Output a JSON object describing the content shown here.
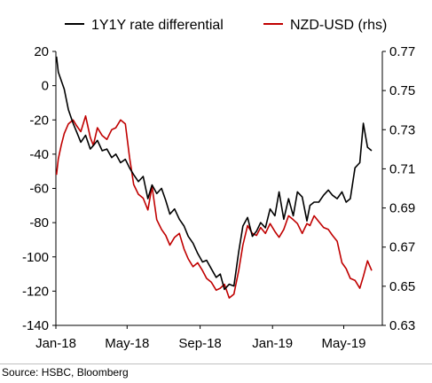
{
  "chart_data": {
    "type": "line",
    "title": "",
    "legend": {
      "placement": "top"
    },
    "x_ticks": [
      "Jan-18",
      "May-18",
      "Sep-18",
      "Jan-19",
      "May-19"
    ],
    "y_left": {
      "min": -140,
      "max": 20,
      "ticks": [
        20,
        0,
        -20,
        -40,
        -60,
        -80,
        -100,
        -120,
        -140
      ]
    },
    "y_right": {
      "min": 0.63,
      "max": 0.77,
      "ticks": [
        "0.77",
        "0.75",
        "0.73",
        "0.71",
        "0.69",
        "0.67",
        "0.65",
        "0.63"
      ]
    },
    "series": [
      {
        "name": "1Y1Y rate differential",
        "axis": "left",
        "color": "#000000",
        "x": [
          "2018-01-02",
          "2018-01-05",
          "2018-01-10",
          "2018-01-15",
          "2018-01-22",
          "2018-01-30",
          "2018-02-05",
          "2018-02-12",
          "2018-02-20",
          "2018-02-28",
          "2018-03-05",
          "2018-03-12",
          "2018-03-20",
          "2018-03-28",
          "2018-04-05",
          "2018-04-12",
          "2018-04-20",
          "2018-04-28",
          "2018-05-05",
          "2018-05-12",
          "2018-05-20",
          "2018-05-28",
          "2018-06-05",
          "2018-06-12",
          "2018-06-20",
          "2018-06-28",
          "2018-07-05",
          "2018-07-12",
          "2018-07-20",
          "2018-07-28",
          "2018-08-05",
          "2018-08-12",
          "2018-08-20",
          "2018-08-28",
          "2018-09-05",
          "2018-09-12",
          "2018-09-20",
          "2018-09-28",
          "2018-10-05",
          "2018-10-12",
          "2018-10-20",
          "2018-10-28",
          "2018-11-05",
          "2018-11-12",
          "2018-11-20",
          "2018-11-28",
          "2018-12-05",
          "2018-12-12",
          "2018-12-20",
          "2018-12-28",
          "2019-01-05",
          "2019-01-12",
          "2019-01-20",
          "2019-01-28",
          "2019-02-05",
          "2019-02-12",
          "2019-02-20",
          "2019-02-28",
          "2019-03-05",
          "2019-03-12",
          "2019-03-20",
          "2019-03-28",
          "2019-04-05",
          "2019-04-12",
          "2019-04-20",
          "2019-04-28",
          "2019-05-05",
          "2019-05-12",
          "2019-05-20",
          "2019-05-28",
          "2019-06-03",
          "2019-06-10",
          "2019-06-17"
        ],
        "values": [
          17,
          8,
          3,
          -2,
          -14,
          -22,
          -27,
          -33,
          -29,
          -37,
          -35,
          -32,
          -38,
          -37,
          -42,
          -40,
          -45,
          -43,
          -48,
          -52,
          -56,
          -53,
          -66,
          -58,
          -63,
          -60,
          -67,
          -75,
          -72,
          -78,
          -82,
          -88,
          -92,
          -98,
          -103,
          -102,
          -107,
          -112,
          -110,
          -119,
          -116,
          -117,
          -97,
          -82,
          -77,
          -88,
          -85,
          -80,
          -83,
          -72,
          -76,
          -62,
          -78,
          -66,
          -76,
          -62,
          -65,
          -79,
          -70,
          -68,
          -68,
          -64,
          -61,
          -64,
          -66,
          -62,
          -68,
          -66,
          -48,
          -45,
          -22,
          -36,
          -38
        ]
      },
      {
        "name": "NZD-USD (rhs)",
        "axis": "right",
        "color": "#c00000",
        "x": [
          "2018-01-02",
          "2018-01-05",
          "2018-01-10",
          "2018-01-15",
          "2018-01-22",
          "2018-01-30",
          "2018-02-05",
          "2018-02-12",
          "2018-02-20",
          "2018-02-28",
          "2018-03-05",
          "2018-03-12",
          "2018-03-20",
          "2018-03-28",
          "2018-04-05",
          "2018-04-12",
          "2018-04-20",
          "2018-04-28",
          "2018-05-05",
          "2018-05-12",
          "2018-05-20",
          "2018-05-28",
          "2018-06-05",
          "2018-06-12",
          "2018-06-20",
          "2018-06-28",
          "2018-07-05",
          "2018-07-12",
          "2018-07-20",
          "2018-07-28",
          "2018-08-05",
          "2018-08-12",
          "2018-08-20",
          "2018-08-28",
          "2018-09-05",
          "2018-09-12",
          "2018-09-20",
          "2018-09-28",
          "2018-10-05",
          "2018-10-12",
          "2018-10-20",
          "2018-10-28",
          "2018-11-05",
          "2018-11-12",
          "2018-11-20",
          "2018-11-28",
          "2018-12-05",
          "2018-12-12",
          "2018-12-20",
          "2018-12-28",
          "2019-01-05",
          "2019-01-12",
          "2019-01-20",
          "2019-01-28",
          "2019-02-05",
          "2019-02-12",
          "2019-02-20",
          "2019-02-28",
          "2019-03-05",
          "2019-03-12",
          "2019-03-20",
          "2019-03-28",
          "2019-04-05",
          "2019-04-12",
          "2019-04-20",
          "2019-04-28",
          "2019-05-05",
          "2019-05-12",
          "2019-05-20",
          "2019-05-28",
          "2019-06-03",
          "2019-06-10",
          "2019-06-17"
        ],
        "values": [
          0.707,
          0.715,
          0.722,
          0.728,
          0.733,
          0.735,
          0.732,
          0.729,
          0.737,
          0.726,
          0.722,
          0.731,
          0.727,
          0.725,
          0.73,
          0.731,
          0.735,
          0.733,
          0.716,
          0.702,
          0.697,
          0.695,
          0.689,
          0.701,
          0.684,
          0.679,
          0.676,
          0.671,
          0.675,
          0.677,
          0.669,
          0.664,
          0.66,
          0.662,
          0.658,
          0.654,
          0.652,
          0.648,
          0.649,
          0.651,
          0.644,
          0.646,
          0.658,
          0.671,
          0.681,
          0.677,
          0.676,
          0.68,
          0.677,
          0.682,
          0.678,
          0.675,
          0.679,
          0.686,
          0.684,
          0.682,
          0.677,
          0.682,
          0.681,
          0.686,
          0.683,
          0.68,
          0.679,
          0.676,
          0.673,
          0.662,
          0.659,
          0.654,
          0.653,
          0.649,
          0.655,
          0.663,
          0.658
        ]
      }
    ]
  },
  "source": "Source: HSBC, Bloomberg"
}
